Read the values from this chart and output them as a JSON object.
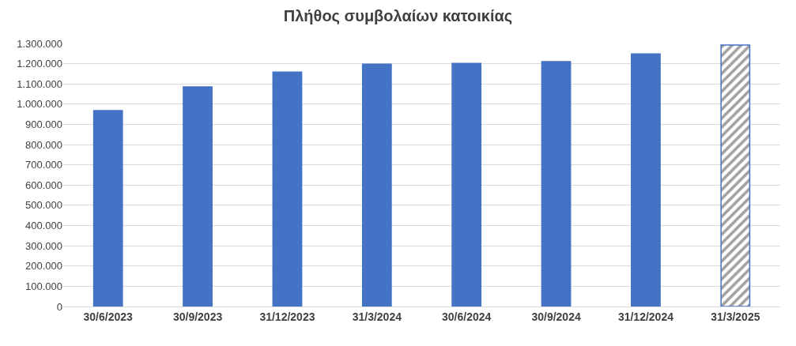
{
  "chart_data": {
    "type": "bar",
    "title": "Πλήθος συμβολαίων κατοικίας",
    "categories": [
      "30/6/2023",
      "30/9/2023",
      "31/12/2023",
      "31/3/2024",
      "30/6/2024",
      "30/9/2024",
      "31/12/2024",
      "31/3/2025"
    ],
    "values": [
      968000,
      1085000,
      1158000,
      1198000,
      1201000,
      1210000,
      1248000,
      1292000
    ],
    "colors": [
      "#4472c4",
      "#4472c4",
      "#4472c4",
      "#4472c4",
      "#4472c4",
      "#4472c4",
      "#4472c4",
      "#4472c4"
    ],
    "ylim": [
      0,
      1300000
    ],
    "yticks": [
      0,
      {
        "value": 100000,
        "label": "100.000"
      },
      {
        "value": 200000,
        "label": "200.000"
      },
      {
        "value": 300000,
        "label": "300.000"
      },
      {
        "value": 400000,
        "label": "400.000"
      },
      {
        "value": 500000,
        "label": "500.000"
      },
      {
        "value": 600000,
        "label": "600.000"
      },
      {
        "value": 700000,
        "label": "700.000"
      },
      {
        "value": 800000,
        "label": "800.000"
      },
      {
        "value": 900000,
        "label": "900.000"
      },
      {
        "value": 1000000,
        "label": "1.000.000"
      },
      {
        "value": 1100000,
        "label": "1.100.000"
      },
      {
        "value": 1200000,
        "label": "1.200.000"
      },
      {
        "value": 1300000,
        "label": "1.300.000"
      }
    ],
    "grid": "y"
  }
}
